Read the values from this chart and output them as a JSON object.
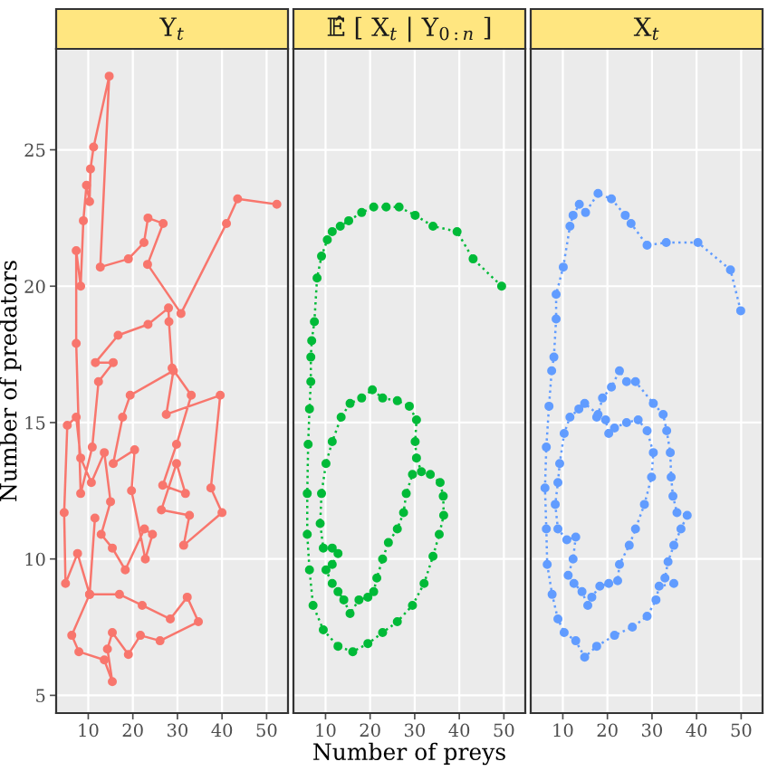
{
  "chart_data": [
    {
      "type": "line",
      "title": "Y$_{t}$",
      "ylabel": "Number of predators",
      "xlim": [
        2.8,
        54.8
      ],
      "ylim": [
        4.35,
        28.7
      ],
      "xticks": [
        10,
        20,
        30,
        40,
        50
      ],
      "yticks": [
        5,
        10,
        15,
        20,
        25
      ],
      "grid": true,
      "marker": "circle",
      "line_style": "solid",
      "series": [
        {
          "color": "#f8766d",
          "x": [
            52.3,
            43.5,
            41.0,
            30.8,
            23.3,
            26.8,
            23.4,
            22.5,
            19.0,
            12.7,
            14.7,
            11.2,
            10.5,
            10.3,
            9.6,
            8.9,
            8.3,
            7.3,
            7.3,
            8.3,
            10.9,
            12.3,
            15.6,
            11.6,
            16.7,
            23.4,
            28.0,
            28.1,
            28.8,
            33.1,
            29.8,
            26.7,
            31.8,
            29.8,
            26.4,
            32.7,
            31.4,
            40.0,
            37.5,
            39.6,
            27.5,
            29.1,
            19.4,
            17.7,
            15.6,
            20.4,
            19.7,
            22.8,
            24.4,
            22.6,
            18.3,
            15.4,
            12.9,
            15.0,
            13.6,
            10.7,
            8.3,
            7.3,
            5.3,
            4.6,
            4.9,
            7.6,
            10.3,
            17.0,
            22.1,
            28.4,
            32.2,
            34.7,
            26.1,
            21.7,
            19.0,
            15.4,
            14.3,
            15.4,
            13.6,
            7.9,
            6.3,
            10.3,
            11.5
          ],
          "values": [
            23.0,
            23.2,
            22.3,
            19.0,
            20.8,
            22.3,
            22.5,
            21.6,
            21.0,
            20.7,
            27.7,
            25.1,
            24.3,
            23.1,
            23.7,
            22.4,
            20.0,
            21.3,
            17.9,
            12.4,
            14.1,
            16.5,
            17.2,
            17.2,
            18.2,
            18.6,
            19.2,
            18.7,
            17.0,
            16.0,
            14.2,
            12.7,
            12.4,
            13.5,
            11.8,
            11.6,
            10.5,
            11.7,
            12.6,
            16.0,
            15.3,
            16.9,
            16.0,
            15.2,
            13.5,
            14.0,
            12.5,
            10.0,
            10.9,
            11.1,
            9.6,
            10.4,
            10.9,
            12.1,
            13.9,
            12.8,
            13.7,
            15.2,
            14.9,
            11.7,
            9.1,
            10.2,
            8.7,
            8.7,
            8.3,
            7.8,
            8.6,
            7.7,
            7.0,
            7.2,
            6.5,
            7.3,
            6.7,
            5.5,
            6.3,
            6.6,
            7.2,
            8.7,
            11.5
          ]
        }
      ]
    },
    {
      "type": "line",
      "title": "𝔼̂ [ X$_{t}$ | Y$_{0:n}$ ]",
      "xlabel": "Number of preys",
      "xlim": [
        2.8,
        54.8
      ],
      "ylim": [
        4.35,
        28.7
      ],
      "xticks": [
        10,
        20,
        30,
        40,
        50
      ],
      "yticks": [
        5,
        10,
        15,
        20,
        25
      ],
      "grid": true,
      "marker": "circle",
      "line_style": "dotted",
      "tick_labels": "x",
      "series": [
        {
          "color": "#00ba38",
          "x": [
            49.5,
            43.1,
            39.5,
            34.1,
            30.1,
            26.5,
            23.6,
            20.8,
            18.1,
            15.2,
            13.3,
            11.5,
            10.4,
            9.1,
            8.1,
            7.5,
            6.9,
            6.7,
            6.7,
            6.4,
            6.1,
            5.9,
            5.9,
            6.4,
            7.2,
            9.5,
            12.8,
            16.1,
            19.5,
            22.8,
            26.1,
            29.5,
            32.1,
            34.1,
            35.5,
            36.5,
            36.4,
            35.7,
            33.5,
            31.5,
            30.4,
            30.1,
            30.4,
            28.8,
            26.1,
            22.8,
            20.5,
            18.1,
            15.5,
            13.5,
            11.5,
            10.1,
            9.1,
            8.8,
            9.5,
            11.5,
            12.8,
            11.5,
            10.1,
            11.5,
            12.8,
            14.1,
            15.5,
            17.5,
            19.5,
            20.8,
            21.5,
            22.8,
            24.1,
            26.1,
            27.5,
            28.1,
            29.5
          ],
          "values": [
            20.0,
            21.0,
            22.0,
            22.2,
            22.6,
            22.9,
            22.9,
            22.9,
            22.7,
            22.4,
            22.2,
            22.0,
            21.7,
            21.1,
            20.3,
            18.7,
            18.0,
            17.4,
            16.5,
            15.5,
            14.2,
            12.4,
            10.9,
            9.6,
            8.3,
            7.4,
            6.8,
            6.6,
            6.9,
            7.3,
            7.7,
            8.3,
            9.1,
            10.1,
            10.9,
            11.6,
            12.3,
            12.8,
            13.1,
            13.2,
            13.7,
            14.3,
            15.1,
            15.6,
            15.8,
            15.9,
            16.2,
            15.9,
            15.7,
            15.2,
            14.3,
            13.5,
            12.4,
            11.3,
            10.4,
            10.4,
            10.2,
            9.8,
            9.6,
            9.1,
            8.8,
            8.5,
            8.0,
            8.5,
            8.6,
            8.8,
            9.3,
            10.0,
            10.6,
            11.1,
            11.7,
            12.4,
            13.1
          ]
        }
      ]
    },
    {
      "type": "line",
      "title": "X$_{t}$",
      "xlim": [
        2.8,
        54.8
      ],
      "ylim": [
        4.35,
        28.7
      ],
      "xticks": [
        10,
        20,
        30,
        40,
        50
      ],
      "yticks": [
        5,
        10,
        15,
        20,
        25
      ],
      "grid": true,
      "marker": "circle",
      "line_style": "dotted",
      "tick_labels": "x",
      "series": [
        {
          "color": "#619cff",
          "x": [
            49.9,
            47.6,
            40.3,
            33.2,
            28.9,
            25.3,
            24.0,
            20.9,
            17.9,
            15.1,
            13.7,
            12.3,
            11.6,
            10.1,
            8.5,
            8.5,
            8.0,
            7.5,
            6.9,
            6.3,
            6.0,
            6.3,
            6.5,
            7.6,
            8.9,
            10.3,
            12.9,
            14.9,
            17.6,
            21.6,
            25.6,
            28.9,
            30.9,
            31.6,
            34.9,
            32.9,
            33.6,
            34.9,
            36.5,
            37.9,
            35.6,
            34.7,
            34.3,
            34.1,
            33.3,
            32.5,
            30.3,
            26.3,
            24.3,
            22.7,
            20.9,
            18.9,
            17.9,
            14.9,
            13.6,
            11.6,
            10.3,
            9.3,
            8.9,
            8.3,
            8.9,
            10.9,
            12.9,
            12.3,
            11.2,
            12.5,
            14.3,
            15.6,
            16.5,
            18.3,
            20.3,
            22.3,
            22.7,
            24.9,
            26.3,
            28.3,
            29.9,
            30.3,
            28.9,
            26.9,
            24.3,
            21.6,
            20.3,
            19.6,
            17.6
          ],
          "values": [
            19.1,
            20.6,
            21.6,
            21.6,
            21.5,
            22.3,
            22.6,
            23.2,
            23.4,
            22.7,
            23.0,
            22.6,
            22.2,
            20.7,
            19.7,
            18.8,
            17.4,
            16.9,
            15.6,
            14.1,
            12.6,
            11.1,
            9.8,
            8.7,
            7.8,
            7.3,
            7.0,
            6.4,
            6.8,
            7.2,
            7.5,
            7.9,
            8.5,
            9.0,
            9.1,
            9.3,
            9.9,
            10.5,
            11.1,
            11.6,
            11.7,
            12.3,
            13.0,
            13.9,
            14.7,
            15.3,
            15.7,
            16.5,
            16.5,
            16.9,
            16.3,
            15.9,
            15.3,
            15.7,
            15.5,
            15.2,
            14.6,
            13.5,
            12.8,
            12.0,
            11.1,
            10.7,
            10.8,
            10.0,
            9.4,
            9.1,
            8.8,
            8.3,
            8.6,
            9.0,
            9.1,
            9.2,
            9.8,
            10.5,
            11.1,
            12.0,
            13.0,
            13.9,
            14.7,
            15.1,
            15.0,
            14.8,
            14.6,
            15.1,
            15.2
          ]
        }
      ]
    }
  ]
}
